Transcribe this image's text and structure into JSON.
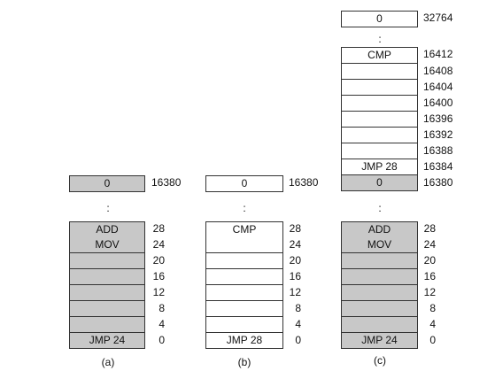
{
  "captions": {
    "a": "(a)",
    "b": "(b)",
    "c": "(c)"
  },
  "vertical_ellipsis": ":",
  "colors": {
    "shaded": "#c8c8c8",
    "unshaded": "#ffffff",
    "border": "#333333"
  },
  "diagram_a": {
    "top": {
      "content": "0",
      "address": "16380"
    },
    "cells": [
      {
        "content": "ADD",
        "address": "28"
      },
      {
        "content": "MOV",
        "address": "24"
      },
      {
        "content": "",
        "address": "20"
      },
      {
        "content": "",
        "address": "16"
      },
      {
        "content": "",
        "address": "12"
      },
      {
        "content": "",
        "address": "8"
      },
      {
        "content": "",
        "address": "4"
      },
      {
        "content": "JMP  24",
        "address": "0"
      }
    ]
  },
  "diagram_b": {
    "top": {
      "content": "0",
      "address": "16380"
    },
    "cells": [
      {
        "content": "CMP",
        "address": "28"
      },
      {
        "content": "",
        "address": "24"
      },
      {
        "content": "",
        "address": "20"
      },
      {
        "content": "",
        "address": "16"
      },
      {
        "content": "",
        "address": "12"
      },
      {
        "content": "",
        "address": "8"
      },
      {
        "content": "",
        "address": "4"
      },
      {
        "content": "JMP 28",
        "address": "0"
      }
    ]
  },
  "diagram_c": {
    "top": {
      "content": "0",
      "address": "32764"
    },
    "upper_cells": [
      {
        "content": "CMP",
        "address": "16412"
      },
      {
        "content": "",
        "address": "16408"
      },
      {
        "content": "",
        "address": "16404"
      },
      {
        "content": "",
        "address": "16400"
      },
      {
        "content": "",
        "address": "16396"
      },
      {
        "content": "",
        "address": "16392"
      },
      {
        "content": "",
        "address": "16388"
      },
      {
        "content": "JMP 28",
        "address": "16384"
      },
      {
        "content": "0",
        "address": "16380"
      }
    ],
    "lower_cells": [
      {
        "content": "ADD",
        "address": "28"
      },
      {
        "content": "MOV",
        "address": "24"
      },
      {
        "content": "",
        "address": "20"
      },
      {
        "content": "",
        "address": "16"
      },
      {
        "content": "",
        "address": "12"
      },
      {
        "content": "",
        "address": "8"
      },
      {
        "content": "",
        "address": "4"
      },
      {
        "content": "JMP  24",
        "address": "0"
      }
    ]
  }
}
